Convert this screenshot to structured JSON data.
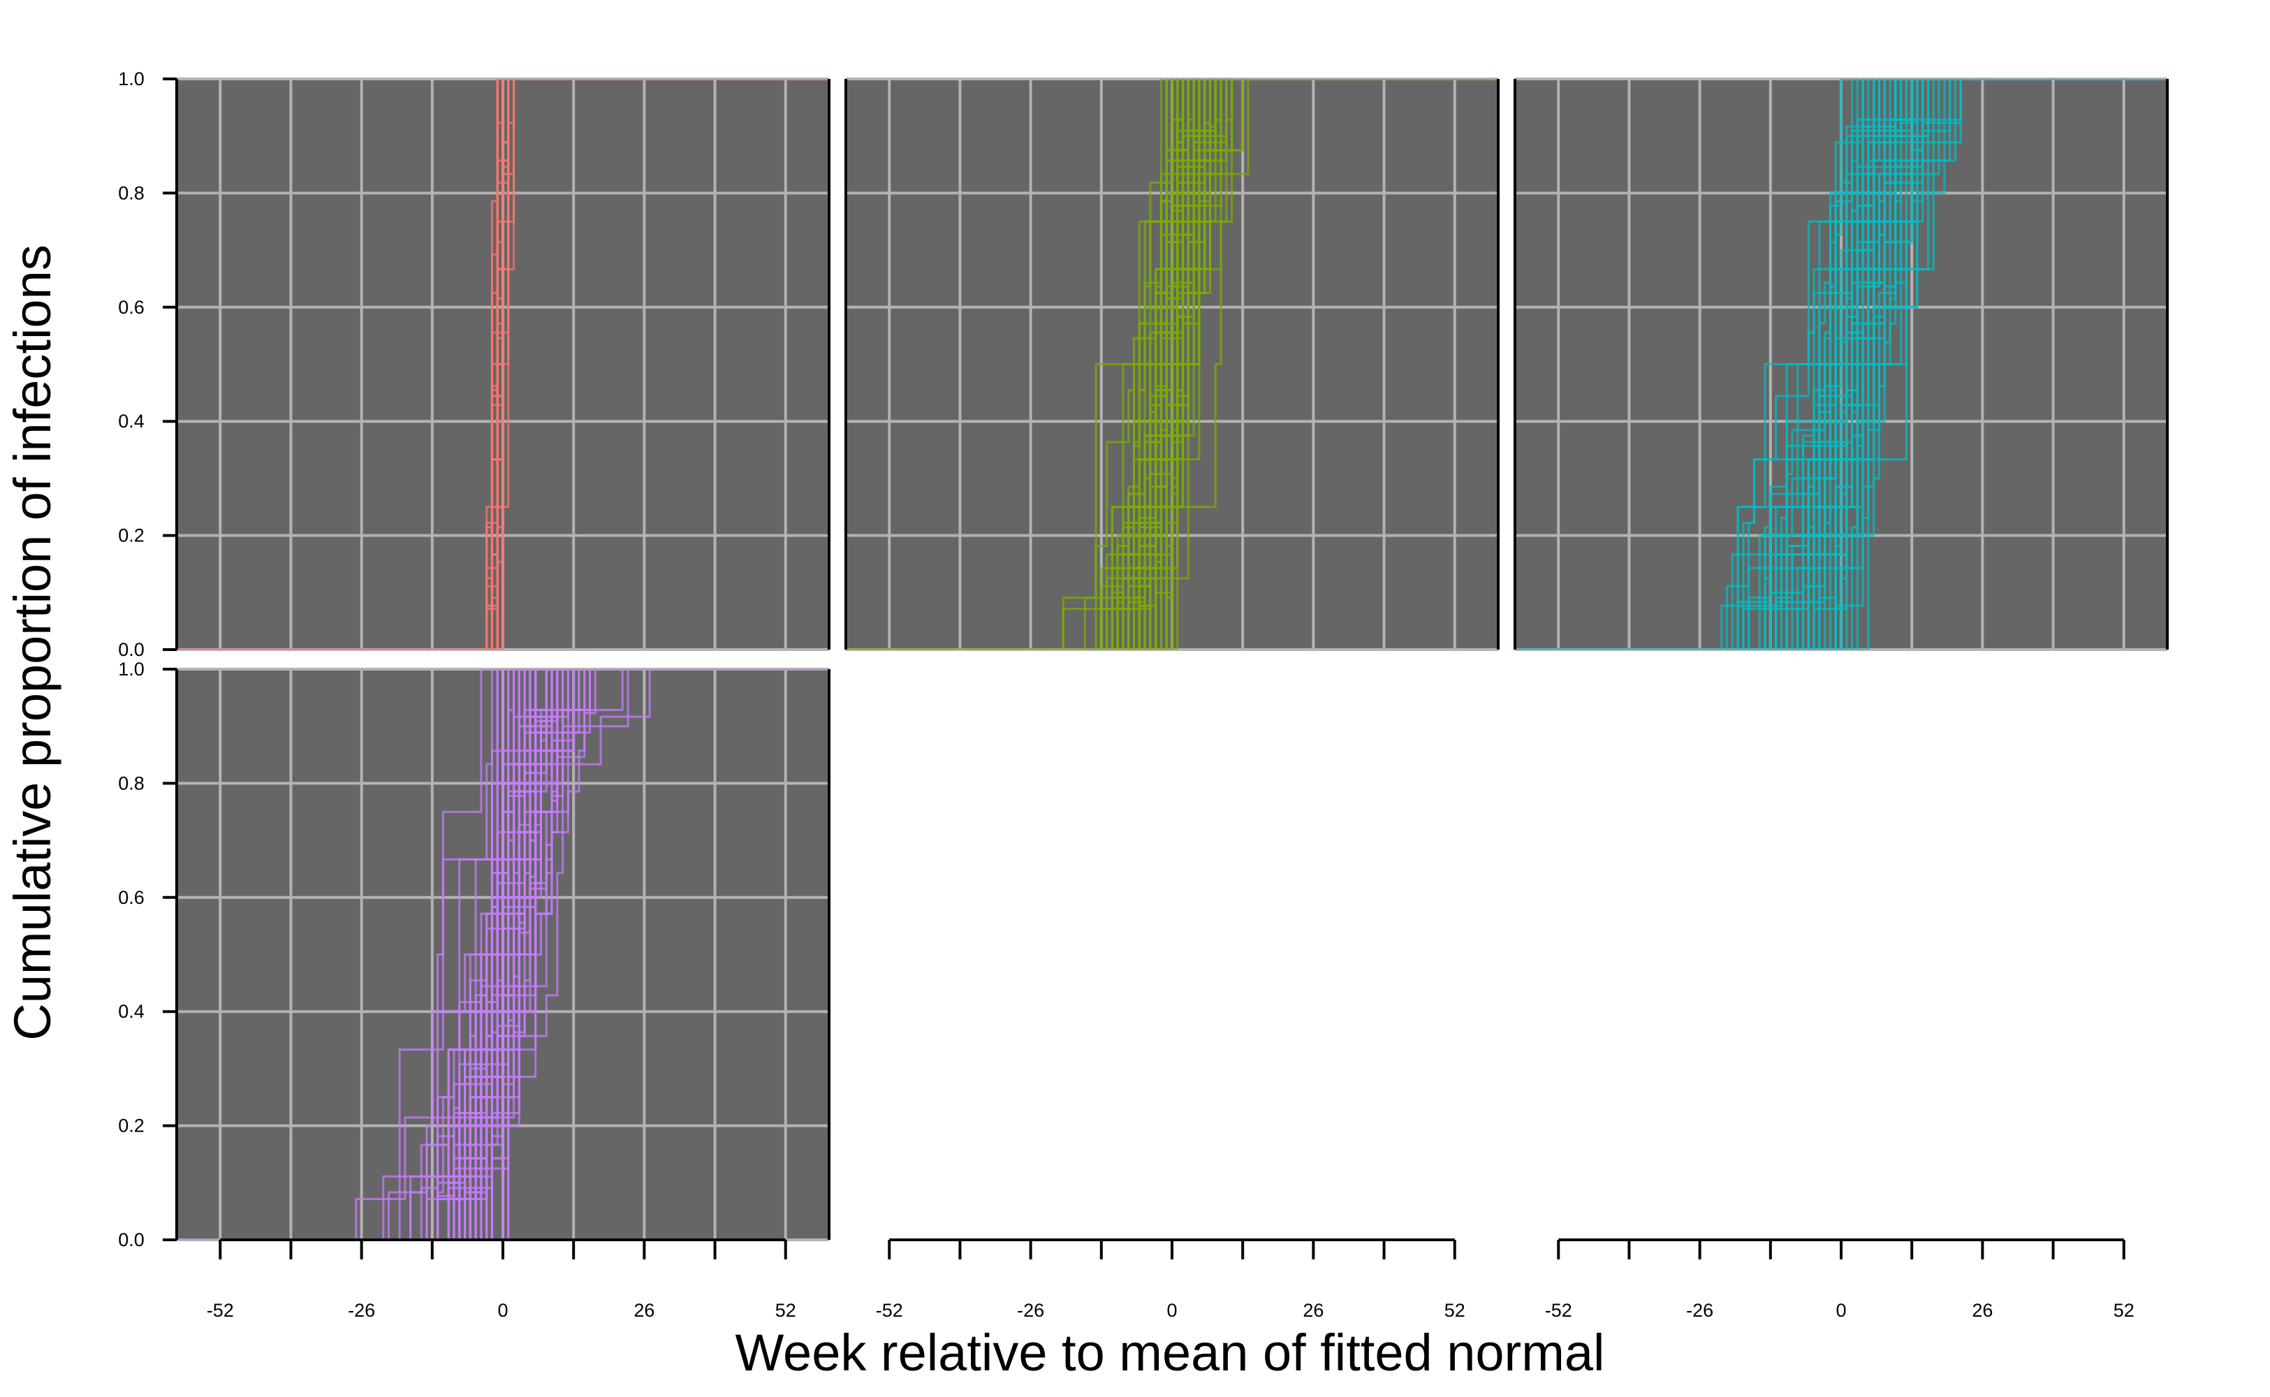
{
  "chart_data": {
    "type": "line",
    "xlabel": "Week relative to mean of fitted normal",
    "ylabel": "Cumulative proportion of infections",
    "xlim": [
      -60,
      60
    ],
    "ylim": [
      0,
      1
    ],
    "x_ticks": [
      -52,
      -26,
      0,
      26,
      52
    ],
    "x_minor_ticks": [
      -52,
      -39,
      -26,
      -13,
      0,
      13,
      26,
      39,
      52
    ],
    "y_ticks": [
      "0.0",
      "0.2",
      "0.4",
      "0.6",
      "0.8",
      "1.0"
    ],
    "panel_background": "#666666",
    "grid_color": "#b3b3b3",
    "grid": true,
    "panels": [
      {
        "color": "#F8766D",
        "n_curves": 40,
        "start": -6,
        "end": 6,
        "median_range": [
          -1.5,
          0.5
        ],
        "spread": 0.8,
        "extra_points": [
          [
            -60,
            0
          ],
          [
            -6,
            0.0
          ],
          [
            6,
            1.0
          ],
          [
            40,
            1.0
          ]
        ]
      },
      {
        "color": "#7CAE00",
        "n_curves": 70,
        "start": -22,
        "end": 20,
        "median_range": [
          -3.5,
          2.5
        ],
        "spread": 4.5,
        "extra_points": [
          [
            -45,
            0
          ],
          [
            -13,
            0.2
          ],
          [
            0,
            0.75
          ],
          [
            17,
            0.96
          ],
          [
            41,
            1.0
          ]
        ]
      },
      {
        "color": "#00BFC4",
        "n_curves": 55,
        "start": -25,
        "end": 22,
        "median_range": [
          -4,
          6
        ],
        "spread": 7.5,
        "extra_points": [
          [
            -50,
            0
          ],
          [
            -12,
            0.3
          ],
          [
            0,
            0.5
          ],
          [
            16,
            0.85
          ],
          [
            37,
            1.0
          ]
        ]
      },
      {
        "color": "#C77CFF",
        "n_curves": 65,
        "start": -30,
        "end": 39,
        "median_range": [
          -2.5,
          2.5
        ],
        "spread": 7,
        "extra_points": [
          [
            -33,
            0
          ],
          [
            -17,
            0.1
          ],
          [
            0,
            0.4
          ],
          [
            10,
            0.85
          ],
          [
            39,
            1.0
          ]
        ]
      }
    ]
  }
}
